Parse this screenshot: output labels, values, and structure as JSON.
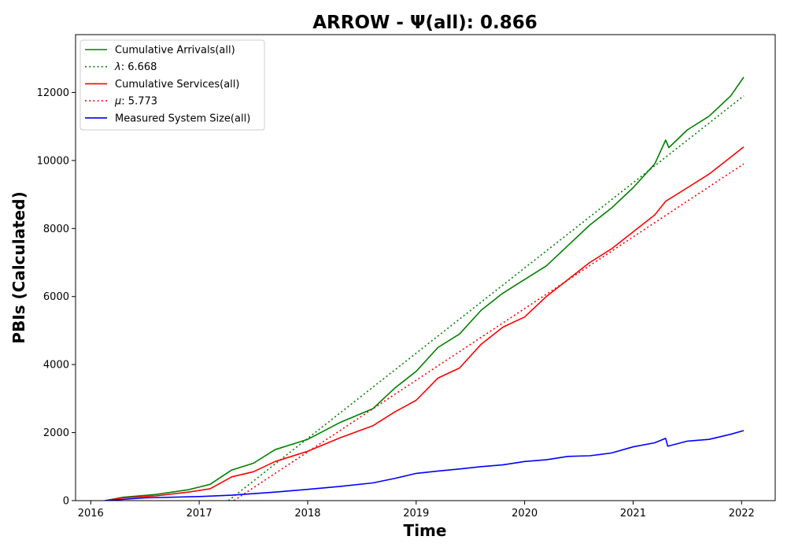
{
  "chart_data": {
    "type": "line",
    "title": "ARROW -  Ψ(all): 0.866",
    "xlabel": "Time",
    "ylabel": "PBIs (Calculated)",
    "xlim": [
      2015.86,
      2022.31
    ],
    "ylim": [
      0,
      13700
    ],
    "x_ticks": [
      2016,
      2017,
      2018,
      2019,
      2020,
      2021,
      2022
    ],
    "x_tick_labels": [
      "2016",
      "2017",
      "2018",
      "2019",
      "2020",
      "2021",
      "2022"
    ],
    "y_ticks": [
      0,
      2000,
      4000,
      6000,
      8000,
      10000,
      12000
    ],
    "y_tick_labels": [
      "0",
      "2000",
      "4000",
      "6000",
      "8000",
      "10000",
      "12000"
    ],
    "grid": false,
    "legend_position": "top-left",
    "series": [
      {
        "name": "Cumulative Arrivals(all)",
        "color": "#008000",
        "style": "solid",
        "x": [
          2016.13,
          2016.3,
          2016.6,
          2016.9,
          2017.1,
          2017.3,
          2017.5,
          2017.7,
          2018.0,
          2018.3,
          2018.6,
          2018.8,
          2019.0,
          2019.2,
          2019.4,
          2019.6,
          2019.8,
          2020.0,
          2020.2,
          2020.4,
          2020.6,
          2020.8,
          2021.0,
          2021.2,
          2021.3,
          2021.33,
          2021.5,
          2021.7,
          2021.9,
          2022.02
        ],
        "values": [
          0,
          100,
          180,
          320,
          480,
          900,
          1100,
          1500,
          1800,
          2300,
          2700,
          3300,
          3800,
          4500,
          4900,
          5600,
          6100,
          6500,
          6900,
          7500,
          8100,
          8600,
          9200,
          9900,
          10600,
          10380,
          10900,
          11300,
          11900,
          12450
        ]
      },
      {
        "name": "λ: 6.668",
        "label_math": "λ",
        "label_rest": ": 6.668",
        "color": "#008000",
        "style": "dotted",
        "x": [
          2017.27,
          2022.02
        ],
        "values": [
          0,
          11900
        ]
      },
      {
        "name": "Cumulative Services(all)",
        "color": "#ff0000",
        "style": "solid",
        "x": [
          2016.13,
          2016.3,
          2016.6,
          2016.9,
          2017.1,
          2017.3,
          2017.5,
          2017.7,
          2018.0,
          2018.3,
          2018.6,
          2018.8,
          2019.0,
          2019.2,
          2019.4,
          2019.6,
          2019.8,
          2020.0,
          2020.2,
          2020.4,
          2020.6,
          2020.8,
          2021.0,
          2021.2,
          2021.3,
          2021.5,
          2021.7,
          2021.9,
          2022.02
        ],
        "values": [
          0,
          80,
          140,
          250,
          350,
          700,
          850,
          1150,
          1450,
          1850,
          2200,
          2600,
          2950,
          3600,
          3900,
          4600,
          5100,
          5400,
          6000,
          6500,
          7000,
          7400,
          7900,
          8400,
          8800,
          9200,
          9600,
          10100,
          10400
        ]
      },
      {
        "name": "μ: 5.773",
        "label_math": "μ",
        "label_rest": ": 5.773",
        "color": "#ff0000",
        "style": "dotted",
        "x": [
          2017.32,
          2022.02
        ],
        "values": [
          0,
          9900
        ]
      },
      {
        "name": "Measured System Size(all)",
        "color": "#0000ff",
        "style": "solid",
        "x": [
          2016.13,
          2016.5,
          2017.0,
          2017.3,
          2017.7,
          2018.0,
          2018.3,
          2018.6,
          2018.8,
          2019.0,
          2019.2,
          2019.4,
          2019.6,
          2019.8,
          2020.0,
          2020.2,
          2020.4,
          2020.6,
          2020.8,
          2021.0,
          2021.2,
          2021.3,
          2021.32,
          2021.5,
          2021.7,
          2021.9,
          2022.02
        ],
        "values": [
          0,
          80,
          120,
          160,
          250,
          330,
          420,
          520,
          650,
          800,
          870,
          930,
          1000,
          1050,
          1150,
          1200,
          1300,
          1320,
          1400,
          1580,
          1700,
          1830,
          1600,
          1750,
          1800,
          1950,
          2060
        ]
      }
    ]
  }
}
